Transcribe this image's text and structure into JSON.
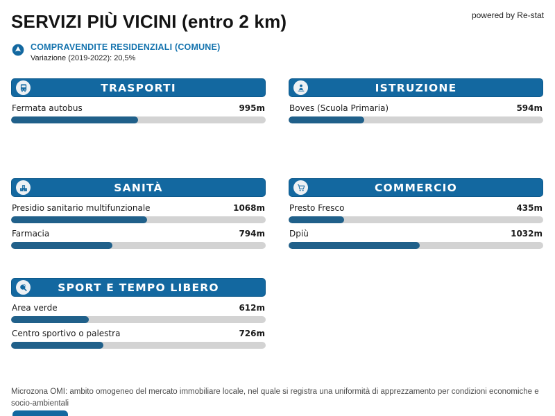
{
  "page": {
    "title": "SERVIZI PIÙ VICINI (entro 2 km)",
    "powered_by": "powered by Re-stat"
  },
  "summary": {
    "title": "COMPRAVENDITE RESIDENZIALI (COMUNE)",
    "subtitle": "Variazione (2019-2022): 20,5%",
    "icon": "trend-up-circle-icon"
  },
  "chart_data": {
    "type": "bar",
    "title": "SERVIZI PIÙ VICINI (entro 2 km)",
    "unit": "m",
    "max_distance_m": 2000,
    "groups": [
      {
        "category": "TRASPORTI",
        "icon": "bus-icon",
        "items": [
          {
            "label": "Fermata autobus",
            "distance_m": 995,
            "value": "995m"
          }
        ]
      },
      {
        "category": "ISTRUZIONE",
        "icon": "student-icon",
        "items": [
          {
            "label": "Boves (Scuola Primaria)",
            "distance_m": 594,
            "value": "594m"
          }
        ]
      },
      {
        "category": "SANITÀ",
        "icon": "hospital-icon",
        "items": [
          {
            "label": "Presidio sanitario multifunzionale",
            "distance_m": 1068,
            "value": "1068m"
          },
          {
            "label": "Farmacia",
            "distance_m": 794,
            "value": "794m"
          }
        ]
      },
      {
        "category": "COMMERCIO",
        "icon": "cart-icon",
        "items": [
          {
            "label": "Presto Fresco",
            "distance_m": 435,
            "value": "435m"
          },
          {
            "label": "Dpiù",
            "distance_m": 1032,
            "value": "1032m"
          }
        ]
      },
      {
        "category": "SPORT E TEMPO LIBERO",
        "icon": "paddle-icon",
        "items": [
          {
            "label": "Area verde",
            "distance_m": 612,
            "value": "612m"
          },
          {
            "label": "Centro sportivo o palestra",
            "distance_m": 726,
            "value": "726m"
          }
        ]
      }
    ]
  },
  "footer": {
    "note": "Microzona OMI: ambito omogeneo del mercato immobiliare locale, nel quale si registra una uniformità di apprezzamento per condizioni economiche e socio-ambientali"
  },
  "colors": {
    "header_blue": "#1368A0",
    "bar_fill": "#20608A",
    "bar_track": "#d3d3d3",
    "accent_text_blue": "#1473AE"
  }
}
